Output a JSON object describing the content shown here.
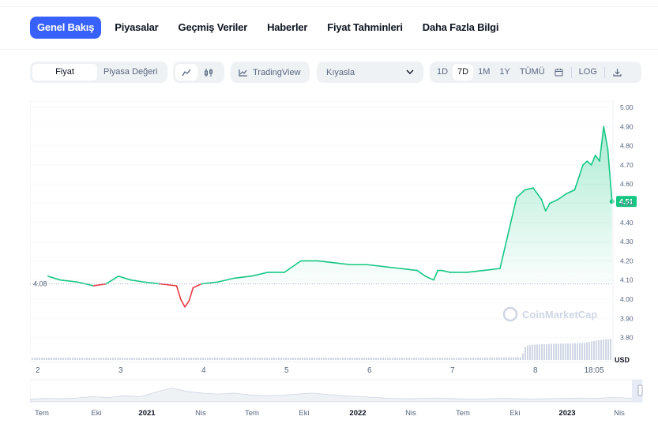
{
  "tabs": [
    {
      "label": "Genel Bakış",
      "active": true
    },
    {
      "label": "Piyasalar",
      "active": false
    },
    {
      "label": "Geçmiş Veriler",
      "active": false
    },
    {
      "label": "Haberler",
      "active": false
    },
    {
      "label": "Fiyat Tahminleri",
      "active": false
    },
    {
      "label": "Daha Fazla Bilgi",
      "active": false
    }
  ],
  "toolbar": {
    "price_label": "Fiyat",
    "market_cap_label": "Piyasa Değeri",
    "line_chart_icon": "line-chart-icon",
    "candle_chart_icon": "candlestick-icon",
    "tradingview_label": "TradingView",
    "compare_label": "Kıyasla",
    "ranges": [
      "1D",
      "7D",
      "1M",
      "1Y",
      "TÜMÜ"
    ],
    "active_range": "7D",
    "calendar_icon": "calendar-icon",
    "log_label": "LOG",
    "download_icon": "download-icon"
  },
  "watermark": "CoinMarketCap",
  "colors": {
    "accent": "#3861fb",
    "up": "#16c784",
    "down": "#ea3943",
    "text": "#0d1421",
    "muted": "#58667e"
  },
  "chart_data": {
    "type": "line",
    "y_ticks": [
      "5.00",
      "4.90",
      "4.80",
      "4.70",
      "4.60",
      "4.50",
      "4.40",
      "4.30",
      "4.20",
      "4.10",
      "4.00",
      "3.90",
      "3.80"
    ],
    "ylim": [
      3.75,
      5.0
    ],
    "y_unit": "USD",
    "x_ticks": [
      "2",
      "3",
      "4",
      "5",
      "6",
      "7",
      "8",
      "18:05"
    ],
    "reference_price": "4.08",
    "reference_value": 4.08,
    "current_price": "4.51",
    "current_value": 4.51,
    "series": [
      {
        "x": [
          2.15,
          2.3,
          2.5,
          2.7,
          2.85,
          3.0,
          3.15,
          3.3,
          3.5,
          3.7,
          3.75,
          3.8,
          3.85,
          3.9,
          4.0,
          4.2,
          4.4,
          4.6,
          4.8,
          5.0,
          5.2,
          5.4,
          5.6,
          5.8,
          6.0,
          6.2,
          6.4,
          6.6,
          6.7,
          6.8,
          6.85,
          6.9,
          7.0,
          7.2,
          7.4,
          7.6,
          7.8,
          7.85,
          7.9,
          8.0,
          8.1,
          8.15,
          8.2,
          8.3,
          8.4,
          8.5,
          8.6,
          8.65,
          8.7,
          8.75,
          8.8,
          8.85,
          8.9,
          8.95
        ],
        "y": [
          4.12,
          4.1,
          4.09,
          4.07,
          4.08,
          4.12,
          4.1,
          4.09,
          4.08,
          4.07,
          4.0,
          3.96,
          3.99,
          4.06,
          4.08,
          4.09,
          4.11,
          4.12,
          4.14,
          4.14,
          4.2,
          4.2,
          4.19,
          4.18,
          4.18,
          4.17,
          4.16,
          4.15,
          4.12,
          4.1,
          4.15,
          4.15,
          4.14,
          4.14,
          4.15,
          4.16,
          4.53,
          4.55,
          4.57,
          4.58,
          4.52,
          4.46,
          4.5,
          4.52,
          4.55,
          4.57,
          4.7,
          4.72,
          4.7,
          4.75,
          4.72,
          4.9,
          4.78,
          4.51
        ]
      }
    ],
    "volume": {
      "x": [
        2.0,
        3.0,
        4.0,
        5.0,
        6.0,
        7.0,
        7.85,
        7.9,
        8.0,
        8.2,
        8.4,
        8.6,
        8.8,
        8.95
      ],
      "v": [
        0.1,
        0.09,
        0.1,
        0.1,
        0.1,
        0.09,
        0.12,
        0.6,
        0.65,
        0.68,
        0.7,
        0.72,
        0.85,
        0.9
      ]
    },
    "navigator_ticks": [
      "Tem",
      "Eki",
      "2021",
      "Nis",
      "Tem",
      "Eki",
      "2022",
      "Nis",
      "Tem",
      "Eki",
      "2023",
      "Nis"
    ]
  }
}
